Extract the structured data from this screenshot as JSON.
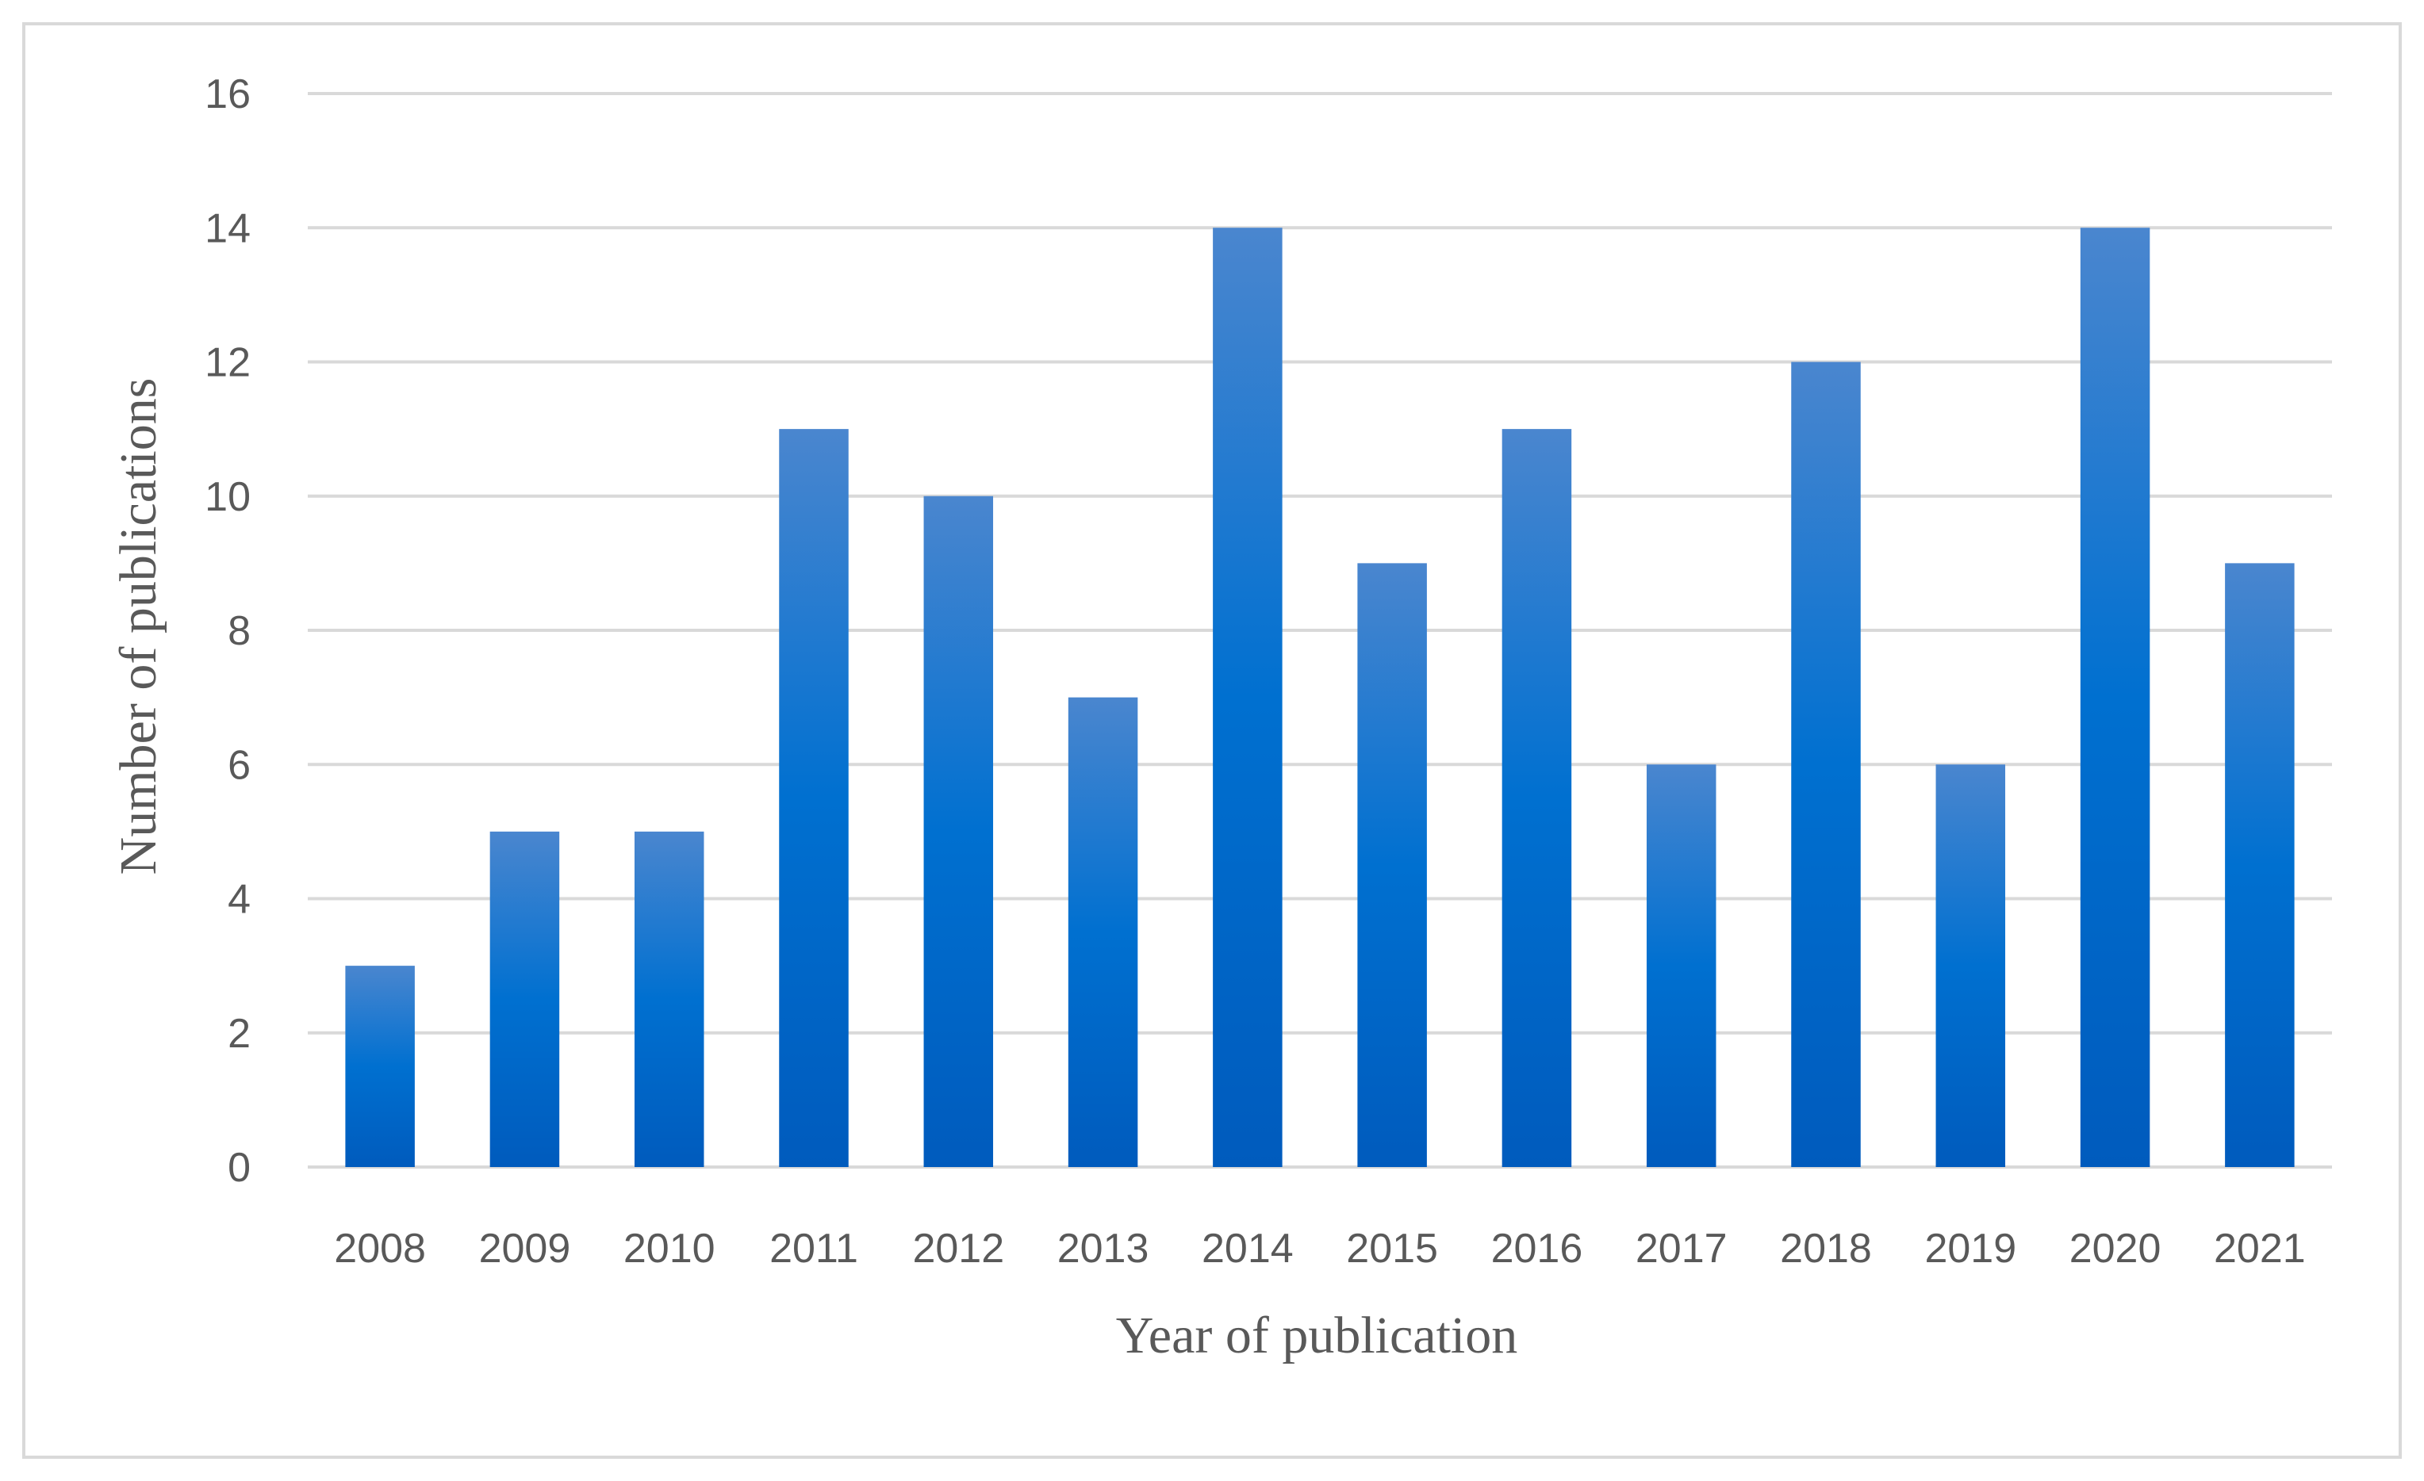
{
  "chart_data": {
    "type": "bar",
    "title": "",
    "xlabel": "Year of publication",
    "ylabel": "Number of publications",
    "categories": [
      "2008",
      "2009",
      "2010",
      "2011",
      "2012",
      "2013",
      "2014",
      "2015",
      "2016",
      "2017",
      "2018",
      "2019",
      "2020",
      "2021"
    ],
    "values": [
      3,
      5,
      5,
      11,
      10,
      7,
      14,
      9,
      11,
      6,
      12,
      6,
      14,
      9
    ],
    "ylim": [
      0,
      16
    ],
    "yticks": [
      0,
      2,
      4,
      6,
      8,
      10,
      12,
      14,
      16
    ],
    "grid": true,
    "legend": "none",
    "colors": {
      "bar_top": "#4a86cf",
      "bar_mid": "#0070d0",
      "bar_bottom": "#005bbd",
      "grid": "#d9d9d9",
      "text": "#595959"
    }
  }
}
